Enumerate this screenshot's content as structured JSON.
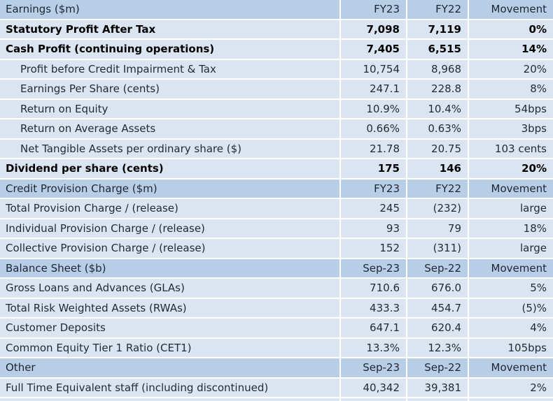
{
  "title": "Financial results summary table",
  "colors": {
    "section_header_bg": "#b8cde6",
    "data_row_bg": "#dbe5f1",
    "gridline": "#ffffff",
    "text": "#1f2a38",
    "bold_text": "#000000"
  },
  "rows": [
    {
      "label": "Earnings ($m)",
      "v1": "FY23",
      "v2": "FY22",
      "v3": "Movement",
      "style": "header"
    },
    {
      "label": "Statutory Profit After Tax",
      "v1": "7,098",
      "v2": "7,119",
      "v3": "0%",
      "style": "bold"
    },
    {
      "label": "Cash Profit (continuing operations)",
      "v1": "7,405",
      "v2": "6,515",
      "v3": "14%",
      "style": "bold"
    },
    {
      "label": "Profit before Credit Impairment & Tax",
      "v1": "10,754",
      "v2": "8,968",
      "v3": "20%",
      "style": "indent"
    },
    {
      "label": "Earnings Per Share (cents)",
      "v1": "247.1",
      "v2": "228.8",
      "v3": "8%",
      "style": "indent"
    },
    {
      "label": "Return on Equity",
      "v1": "10.9%",
      "v2": "10.4%",
      "v3": "54bps",
      "style": "indent"
    },
    {
      "label": "Return on Average Assets",
      "v1": "0.66%",
      "v2": "0.63%",
      "v3": "3bps",
      "style": "indent"
    },
    {
      "label": "Net Tangible Assets per ordinary share ($)",
      "v1": "21.78",
      "v2": "20.75",
      "v3": "103 cents",
      "style": "indent"
    },
    {
      "label": "Dividend per share (cents)",
      "v1": "175",
      "v2": "146",
      "v3": "20%",
      "style": "bold"
    },
    {
      "label": "Credit Provision Charge ($m)",
      "v1": "FY23",
      "v2": "FY22",
      "v3": "Movement",
      "style": "header"
    },
    {
      "label": "Total Provision Charge / (release)",
      "v1": "245",
      "v2": "(232)",
      "v3": "large",
      "style": "normal"
    },
    {
      "label": "Individual Provision Charge / (release)",
      "v1": "93",
      "v2": "79",
      "v3": "18%",
      "style": "normal"
    },
    {
      "label": "Collective Provision Charge / (release)",
      "v1": "152",
      "v2": "(311)",
      "v3": "large",
      "style": "normal"
    },
    {
      "label": "Balance Sheet ($b)",
      "v1": "Sep-23",
      "v2": "Sep-22",
      "v3": "Movement",
      "style": "header"
    },
    {
      "label": "Gross Loans and Advances (GLAs)",
      "v1": "710.6",
      "v2": "676.0",
      "v3": "5%",
      "style": "normal"
    },
    {
      "label": "Total Risk Weighted Assets (RWAs)",
      "v1": "433.3",
      "v2": "454.7",
      "v3": "(5)%",
      "style": "normal"
    },
    {
      "label": "Customer Deposits",
      "v1": "647.1",
      "v2": "620.4",
      "v3": "4%",
      "style": "normal"
    },
    {
      "label": "Common Equity Tier 1 Ratio (CET1)",
      "v1": "13.3%",
      "v2": "12.3%",
      "v3": "105bps",
      "style": "normal"
    },
    {
      "label": "Other",
      "v1": "Sep-23",
      "v2": "Sep-22",
      "v3": "Movement",
      "style": "header"
    },
    {
      "label": "Full Time Equivalent staff (including discontinued)",
      "v1": "40,342",
      "v2": "39,381",
      "v3": "2%",
      "style": "normal"
    }
  ]
}
